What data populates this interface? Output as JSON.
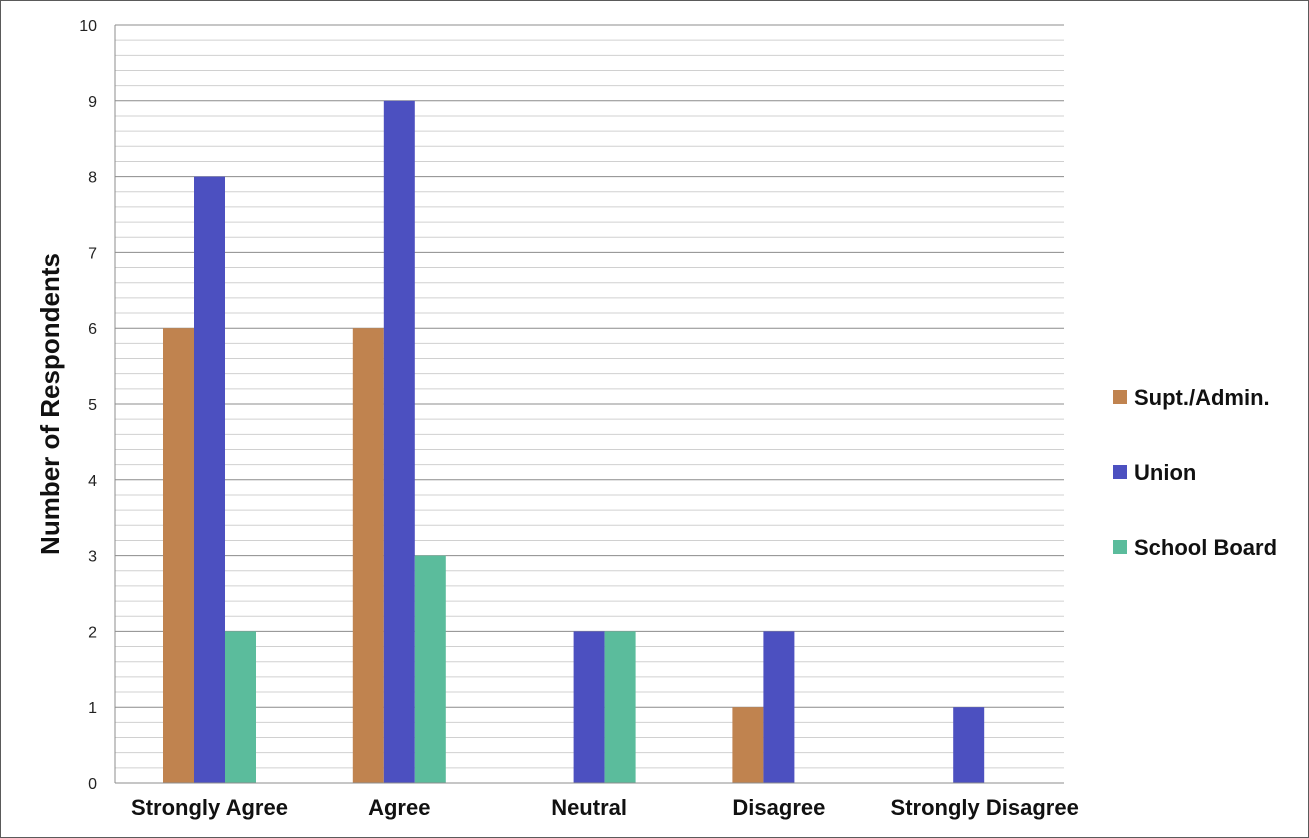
{
  "chart_data": {
    "type": "bar",
    "title": "",
    "xlabel": "",
    "ylabel": "Number of Respondents",
    "categories": [
      "Strongly Agree",
      "Agree",
      "Neutral",
      "Disagree",
      "Strongly Disagree"
    ],
    "series": [
      {
        "name": "Supt./Admin.",
        "color": "#c0834f",
        "values": [
          6,
          6,
          0,
          1,
          0
        ]
      },
      {
        "name": "Union",
        "color": "#4c50c0",
        "values": [
          8,
          9,
          2,
          2,
          1
        ]
      },
      {
        "name": "School Board",
        "color": "#5bbc9c",
        "values": [
          2,
          3,
          2,
          0,
          0
        ]
      }
    ],
    "ylim": [
      0,
      10
    ],
    "yticks": [
      "0",
      "1",
      "2",
      "3",
      "4",
      "5",
      "6",
      "7",
      "8",
      "9",
      "10"
    ],
    "minor_grid_step": 0.2,
    "grid": true,
    "legend_position": "right"
  }
}
